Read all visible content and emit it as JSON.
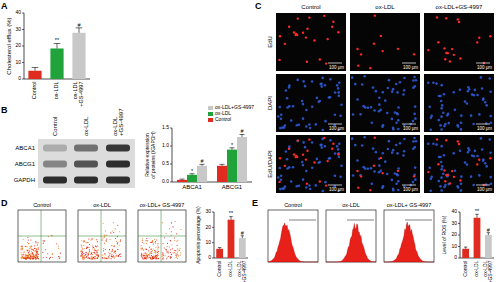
{
  "panel_labels": [
    "A",
    "B",
    "C",
    "D",
    "E"
  ],
  "chart_data": [
    {
      "type": "bar",
      "y_label": "Cholesterol efflux (%)",
      "categories": [
        "Control",
        "ox-LDL",
        "ox-LDL +GS-4997"
      ],
      "values": [
        5,
        18.5,
        28
      ],
      "errors": [
        2,
        3,
        3
      ],
      "annotations": [
        null,
        "**",
        "#"
      ],
      "colors": [
        "#e02b20",
        "#1fa33a",
        "#c8c8c8"
      ],
      "ylim": [
        0,
        40
      ],
      "yticks": [
        0,
        10,
        20,
        30,
        40
      ]
    },
    {
      "type": "bar",
      "y_label": "Relative expression of proteins (/GAPDH)",
      "categories": [
        "ABCA1",
        "ABCG1"
      ],
      "series": [
        {
          "name": "Control",
          "color": "#e02b20",
          "values": [
            0.06,
            0.45
          ],
          "errors": [
            0.02,
            0.04
          ],
          "annotations": [
            null,
            null
          ]
        },
        {
          "name": "ox-LDL",
          "color": "#1fa33a",
          "values": [
            0.2,
            0.9
          ],
          "errors": [
            0.03,
            0.05
          ],
          "annotations": [
            "*",
            "*"
          ]
        },
        {
          "name": "ox-LDL+GS-4997",
          "color": "#c8c8c8",
          "values": [
            0.45,
            1.25
          ],
          "errors": [
            0.04,
            0.07
          ],
          "annotations": [
            "#",
            "#"
          ]
        }
      ],
      "legend": "top-right",
      "ylim": [
        0,
        1.5
      ],
      "yticks": [
        {
          "value": 0,
          "label": "0.0"
        },
        0.5,
        {
          "value": 1,
          "label": "1.0"
        },
        1.5
      ]
    },
    {
      "type": "bar",
      "y_label": "Apoptosis percentage (%)",
      "categories": [
        "Control",
        "ox-LDL",
        "ox-LDL +GS-4997"
      ],
      "values": [
        6,
        25,
        13
      ],
      "errors": [
        0.8,
        2,
        1.5
      ],
      "annotations": [
        null,
        "**",
        "#"
      ],
      "colors": [
        "#e02b20",
        "#e02b20",
        "#c8c8c8"
      ],
      "ylim": [
        0,
        30
      ],
      "yticks": [
        0,
        10,
        20,
        30
      ]
    },
    {
      "type": "bar",
      "y_label": "Level of ROS (%)",
      "categories": [
        "Control",
        "ox-LDL",
        "ox-LDL +GS-4997"
      ],
      "values": [
        8,
        35,
        20
      ],
      "errors": [
        1.5,
        3,
        2
      ],
      "annotations": [
        null,
        "**",
        "#"
      ],
      "colors": [
        "#e02b20",
        "#e02b20",
        "#c8c8c8"
      ],
      "ylim": [
        0,
        40
      ],
      "yticks": [
        0,
        10,
        20,
        30,
        40
      ]
    }
  ],
  "blot": {
    "lanes": [
      "Control",
      "ox-LDL",
      "ox-LDL +GS-4997"
    ],
    "rows": [
      "ABCA1",
      "ABCG1",
      "GAPDH"
    ]
  },
  "microscopy": {
    "columns": [
      "Control",
      "ox-LDL",
      "ox-LDL+GS-4997"
    ],
    "rows": [
      "EdU",
      "DAPI",
      "EdU/DAPI"
    ],
    "scale_bar": "100 μm"
  },
  "flow_cytometry": {
    "columns": [
      "Control",
      "ox-LDL",
      "ox-LDL+ GS-4997"
    ]
  },
  "ros_histograms": {
    "columns": [
      "Control",
      "ox-LDL",
      "ox-LDL+ GS-4997"
    ]
  }
}
